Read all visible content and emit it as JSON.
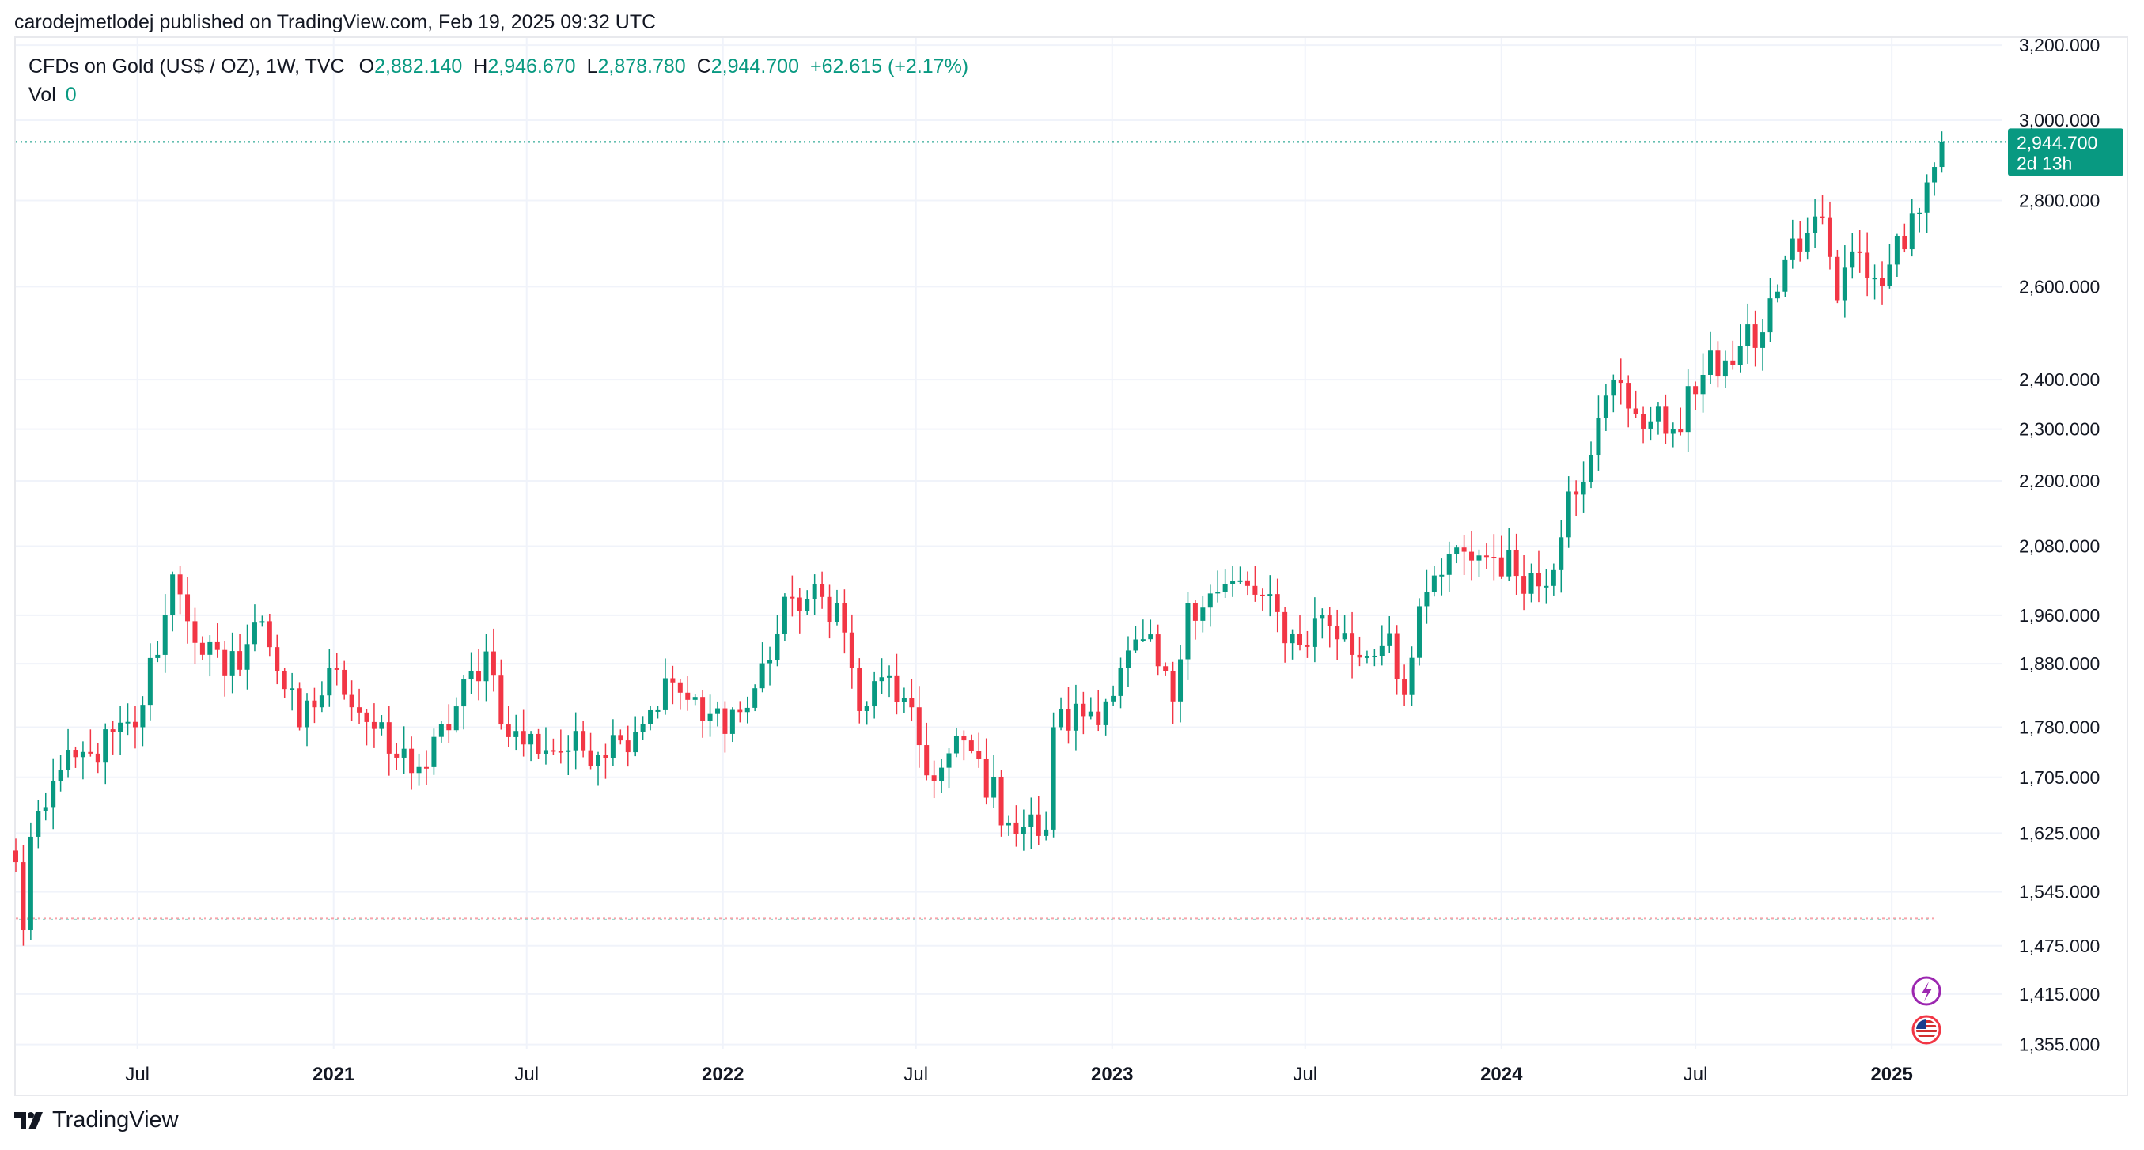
{
  "header": {
    "publisher_line": "carodejmetlodej published on TradingView.com, Feb 19, 2025 09:32 UTC"
  },
  "legend": {
    "symbol": "CFDs on Gold (US$ / OZ), 1W, TVC",
    "open_label": "O",
    "open": "2,882.140",
    "high_label": "H",
    "high": "2,946.670",
    "low_label": "L",
    "low": "2,878.780",
    "close_label": "C",
    "close": "2,944.700",
    "change": "+62.615 (+2.17%)",
    "vol_label": "Vol",
    "vol": "0"
  },
  "price_tag": {
    "price": "2,944.700",
    "countdown": "2d 13h"
  },
  "footer": {
    "brand": "TradingView"
  },
  "colors": {
    "up": "#089981",
    "down": "#f23645",
    "grid": "#f0f3fa"
  },
  "chart_data": {
    "type": "candlestick",
    "interval": "1W",
    "y_scale": "log",
    "y_ticks": [
      {
        "v": 3200,
        "label": "3,200.000"
      },
      {
        "v": 3000,
        "label": "3,000.000"
      },
      {
        "v": 2800,
        "label": "2,800.000"
      },
      {
        "v": 2600,
        "label": "2,600.000"
      },
      {
        "v": 2400,
        "label": "2,400.000"
      },
      {
        "v": 2300,
        "label": "2,300.000"
      },
      {
        "v": 2200,
        "label": "2,200.000"
      },
      {
        "v": 2080,
        "label": "2,080.000"
      },
      {
        "v": 1960,
        "label": "1,960.000"
      },
      {
        "v": 1880,
        "label": "1,880.000"
      },
      {
        "v": 1780,
        "label": "1,780.000"
      },
      {
        "v": 1705,
        "label": "1,705.000"
      },
      {
        "v": 1625,
        "label": "1,625.000"
      },
      {
        "v": 1545,
        "label": "1,545.000"
      },
      {
        "v": 1475,
        "label": "1,475.000"
      },
      {
        "v": 1415,
        "label": "1,415.000"
      },
      {
        "v": 1355,
        "label": "1,355.000"
      }
    ],
    "ylim": [
      1350,
      3220
    ],
    "x_start": "2020-03-09",
    "x_end": "2025-04-14",
    "x_ticks": [
      {
        "date": "2020-07-01",
        "label": "Jul",
        "bold": false
      },
      {
        "date": "2021-01-01",
        "label": "2021",
        "bold": true
      },
      {
        "date": "2021-07-01",
        "label": "Jul",
        "bold": false
      },
      {
        "date": "2022-01-01",
        "label": "2022",
        "bold": true
      },
      {
        "date": "2022-07-01",
        "label": "Jul",
        "bold": false
      },
      {
        "date": "2023-01-01",
        "label": "2023",
        "bold": true
      },
      {
        "date": "2023-07-01",
        "label": "Jul",
        "bold": false
      },
      {
        "date": "2024-01-01",
        "label": "2024",
        "bold": true
      },
      {
        "date": "2024-07-01",
        "label": "Jul",
        "bold": false
      },
      {
        "date": "2025-01-01",
        "label": "2025",
        "bold": true
      }
    ],
    "last_price": 2944.7,
    "reference_level": 1510,
    "close_anchors": [
      [
        "2020-03-09",
        1585
      ],
      [
        "2020-03-16",
        1495
      ],
      [
        "2020-03-23",
        1620
      ],
      [
        "2020-04-13",
        1700
      ],
      [
        "2020-05-18",
        1740
      ],
      [
        "2020-06-29",
        1780
      ],
      [
        "2020-07-27",
        1960
      ],
      [
        "2020-08-03",
        2030
      ],
      [
        "2020-08-17",
        1950
      ],
      [
        "2020-09-21",
        1860
      ],
      [
        "2020-10-26",
        1950
      ],
      [
        "2020-11-30",
        1780
      ],
      [
        "2021-01-04",
        1870
      ],
      [
        "2021-02-22",
        1740
      ],
      [
        "2021-03-29",
        1720
      ],
      [
        "2021-05-24",
        1900
      ],
      [
        "2021-06-14",
        1765
      ],
      [
        "2021-08-09",
        1745
      ],
      [
        "2021-09-27",
        1760
      ],
      [
        "2021-11-15",
        1850
      ],
      [
        "2021-12-13",
        1790
      ],
      [
        "2022-01-24",
        1810
      ],
      [
        "2022-03-07",
        1990
      ],
      [
        "2022-04-18",
        1980
      ],
      [
        "2022-05-09",
        1805
      ],
      [
        "2022-06-06",
        1860
      ],
      [
        "2022-07-18",
        1700
      ],
      [
        "2022-08-15",
        1760
      ],
      [
        "2022-09-26",
        1640
      ],
      [
        "2022-10-31",
        1630
      ],
      [
        "2022-11-07",
        1780
      ],
      [
        "2022-12-26",
        1820
      ],
      [
        "2023-01-30",
        1920
      ],
      [
        "2023-02-27",
        1820
      ],
      [
        "2023-03-13",
        1980
      ],
      [
        "2023-04-10",
        2000
      ],
      [
        "2023-05-08",
        2010
      ],
      [
        "2023-06-26",
        1910
      ],
      [
        "2023-07-17",
        1960
      ],
      [
        "2023-08-21",
        1890
      ],
      [
        "2023-09-18",
        1930
      ],
      [
        "2023-10-02",
        1830
      ],
      [
        "2023-10-23",
        2000
      ],
      [
        "2023-11-27",
        2070
      ],
      [
        "2023-12-25",
        2060
      ],
      [
        "2024-02-12",
        2010
      ],
      [
        "2024-03-04",
        2180
      ],
      [
        "2024-03-25",
        2250
      ],
      [
        "2024-04-15",
        2400
      ],
      [
        "2024-05-06",
        2330
      ],
      [
        "2024-06-10",
        2300
      ],
      [
        "2024-07-08",
        2410
      ],
      [
        "2024-07-29",
        2440
      ],
      [
        "2024-09-02",
        2500
      ],
      [
        "2024-09-23",
        2660
      ],
      [
        "2024-10-28",
        2760
      ],
      [
        "2024-11-11",
        2570
      ],
      [
        "2024-11-25",
        2680
      ],
      [
        "2024-12-16",
        2620
      ],
      [
        "2024-12-30",
        2650
      ],
      [
        "2025-01-20",
        2770
      ],
      [
        "2025-02-10",
        2882
      ],
      [
        "2025-02-17",
        2944.7
      ]
    ]
  }
}
